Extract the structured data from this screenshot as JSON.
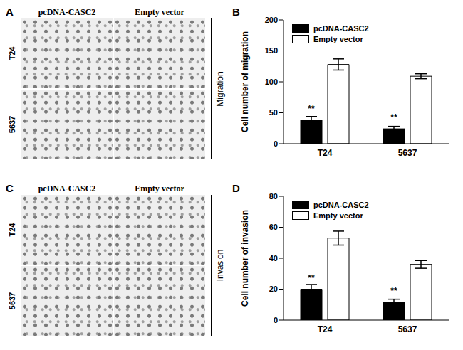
{
  "image_panels": [
    {
      "panel_label": "A",
      "columns": [
        "pcDNA-CASC2",
        "Empty vector"
      ],
      "rows": [
        "T24",
        "5637"
      ],
      "side_label": "Migration"
    },
    {
      "panel_label": "C",
      "columns": [
        "pcDNA-CASC2",
        "Empty vector"
      ],
      "rows": [
        "T24",
        "5637"
      ],
      "side_label": "Invasion"
    }
  ],
  "chart_data": [
    {
      "type": "bar",
      "panel_label": "B",
      "y_label": "Cell number of migration",
      "categories": [
        "T24",
        "5637"
      ],
      "series": [
        {
          "name": "pcDNA-CASC2",
          "color": "#000000",
          "values": [
            38,
            24
          ],
          "errors": [
            6,
            4
          ],
          "annotations": [
            "**",
            "**"
          ]
        },
        {
          "name": "Empty vector",
          "color": "#ffffff",
          "values": [
            128,
            109
          ],
          "errors": [
            9,
            4
          ]
        }
      ],
      "ylim": [
        0,
        200
      ],
      "yticks": [
        0,
        50,
        100,
        150,
        200
      ]
    },
    {
      "type": "bar",
      "panel_label": "D",
      "y_label": "Cell number of invasion",
      "categories": [
        "T24",
        "5637"
      ],
      "series": [
        {
          "name": "pcDNA-CASC2",
          "color": "#000000",
          "values": [
            20,
            11.5
          ],
          "errors": [
            3,
            2
          ],
          "annotations": [
            "**",
            "**"
          ]
        },
        {
          "name": "Empty vector",
          "color": "#ffffff",
          "values": [
            53,
            36
          ],
          "errors": [
            4.5,
            2.5
          ]
        }
      ],
      "ylim": [
        0,
        80
      ],
      "yticks": [
        0,
        20,
        40,
        60,
        80
      ]
    }
  ]
}
